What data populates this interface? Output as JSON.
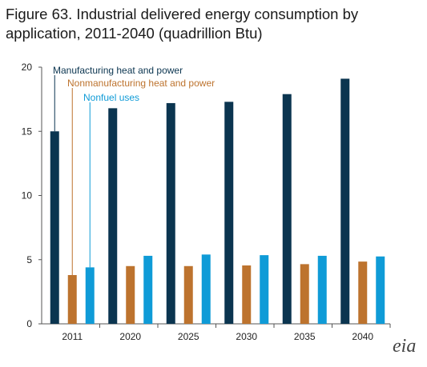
{
  "chart_data": {
    "type": "bar",
    "title": "Figure 63. Industrial delivered energy consumption by application, 2011-2040 (quadrillion Btu)",
    "categories": [
      "2011",
      "2020",
      "2025",
      "2030",
      "2035",
      "2040"
    ],
    "series": [
      {
        "name": "Manufacturing heat and power",
        "color": "#0b3550",
        "values": [
          15.0,
          16.8,
          17.2,
          17.3,
          17.9,
          19.1
        ]
      },
      {
        "name": "Nonmanufacturing heat and power",
        "color": "#bd732e",
        "values": [
          3.8,
          4.5,
          4.5,
          4.55,
          4.65,
          4.85
        ]
      },
      {
        "name": "Nonfuel uses",
        "color": "#0f9bd7",
        "values": [
          4.4,
          5.3,
          5.4,
          5.35,
          5.3,
          5.25
        ]
      }
    ],
    "ylim": [
      0,
      20
    ],
    "yticks": [
      0,
      5,
      10,
      15,
      20
    ],
    "xlabel": "",
    "ylabel": "",
    "grid": false,
    "legend": "annotated callouts at top-left"
  },
  "logo": {
    "text": "eia",
    "name": "eia-logo"
  }
}
